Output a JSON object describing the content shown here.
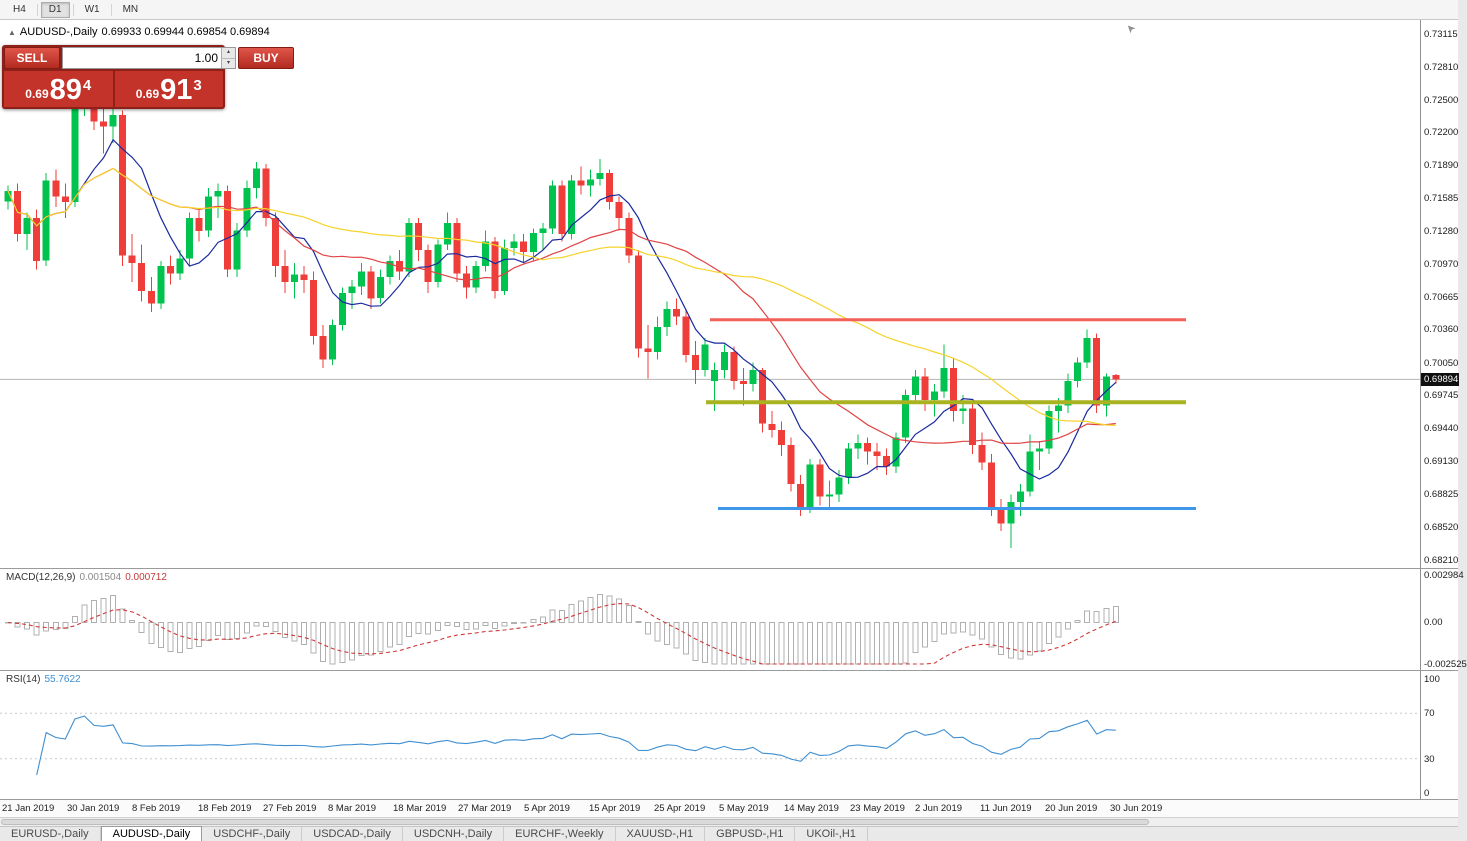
{
  "toolbar": {
    "timeframes": [
      {
        "label": "H4",
        "active": false
      },
      {
        "label": "D1",
        "active": true
      },
      {
        "label": "W1",
        "active": false
      },
      {
        "label": "MN",
        "active": false
      }
    ]
  },
  "icons": {
    "spinner_up": "▴",
    "spinner_down": "▾",
    "chart_marker": "▲",
    "cursor": "➤"
  },
  "chart": {
    "title": "AUDUSD-,Daily",
    "ohlc_text": "0.69933 0.69944 0.69854 0.69894"
  },
  "trade_panel": {
    "sell_label": "SELL",
    "buy_label": "BUY",
    "volume": "1.00",
    "bid": {
      "prefix": "0.69",
      "big": "89",
      "sup": "4"
    },
    "ask": {
      "prefix": "0.69",
      "big": "91",
      "sup": "3"
    }
  },
  "price_scale": {
    "labels": [
      "0.73115",
      "0.72810",
      "0.72500",
      "0.72200",
      "0.71890",
      "0.71585",
      "0.71280",
      "0.70970",
      "0.70665",
      "0.70360",
      "0.70050",
      "0.69745",
      "0.69440",
      "0.69130",
      "0.68825",
      "0.68520",
      "0.68210"
    ],
    "badge": "0.69894"
  },
  "macd_panel": {
    "label": "MACD(12,26,9)",
    "value_main": "0.001504",
    "value_signal": "0.000712",
    "scale_top": "0.002984",
    "scale_zero": "0.00",
    "scale_bottom": "-0.002525"
  },
  "rsi_panel": {
    "label": "RSI(14)",
    "value": "55.7622",
    "levels": [
      "100",
      "70",
      "30",
      "0"
    ]
  },
  "date_axis": [
    "21 Jan 2019",
    "30 Jan 2019",
    "8 Feb 2019",
    "18 Feb 2019",
    "27 Feb 2019",
    "8 Mar 2019",
    "18 Mar 2019",
    "27 Mar 2019",
    "5 Apr 2019",
    "15 Apr 2019",
    "25 Apr 2019",
    "5 May 2019",
    "14 May 2019",
    "23 May 2019",
    "2 Jun 2019",
    "11 Jun 2019",
    "20 Jun 2019",
    "30 Jun 2019"
  ],
  "tabs": [
    {
      "label": "EURUSD-,Daily",
      "active": false
    },
    {
      "label": "AUDUSD-,Daily",
      "active": true
    },
    {
      "label": "USDCHF-,Daily",
      "active": false
    },
    {
      "label": "USDCAD-,Daily",
      "active": false
    },
    {
      "label": "USDCNH-,Daily",
      "active": false
    },
    {
      "label": "EURCHF-,Weekly",
      "active": false
    },
    {
      "label": "XAUUSD-,H1",
      "active": false
    },
    {
      "label": "GBPUSD-,H1",
      "active": false
    },
    {
      "label": "UKOil-,H1",
      "active": false
    }
  ],
  "chart_data": {
    "type": "candlestick",
    "symbol": "AUDUSD",
    "timeframe": "Daily",
    "y_range": [
      0.68135,
      0.73245
    ],
    "bid": 0.69894,
    "colors": {
      "up": "#00c24e",
      "down": "#ef3e3a"
    },
    "overlays": [
      {
        "name": "ma-fast-blue-line",
        "period": 8,
        "color": "#1a2a9e"
      },
      {
        "name": "ma-mid-red-line",
        "period": 20,
        "color": "#e04343"
      },
      {
        "name": "ma-slow-yellow-line",
        "period": 45,
        "color": "#f6d32b"
      }
    ],
    "hlines": [
      {
        "name": "resistance-line",
        "price": 0.7045,
        "x1": 710,
        "x2": 1186,
        "color": "#f26058",
        "width": 3
      },
      {
        "name": "mid-support-line",
        "price": 0.6968,
        "x1": 706,
        "x2": 1186,
        "color": "#a9b21f",
        "width": 4
      },
      {
        "name": "support-line",
        "price": 0.6869,
        "x1": 718,
        "x2": 1196,
        "color": "#3e97e8",
        "width": 3
      }
    ],
    "macd": {
      "fast": 12,
      "slow": 26,
      "signal": 9,
      "scale_max": 0.0032,
      "scale_min": -0.0028
    },
    "rsi": {
      "period": 14,
      "levels": [
        70,
        30
      ]
    },
    "ohlc": [
      [
        0.7155,
        0.717,
        0.7148,
        0.7165
      ],
      [
        0.7165,
        0.7172,
        0.7118,
        0.7125
      ],
      [
        0.7125,
        0.7145,
        0.711,
        0.714
      ],
      [
        0.714,
        0.7148,
        0.7092,
        0.71
      ],
      [
        0.71,
        0.7182,
        0.7095,
        0.7175
      ],
      [
        0.7175,
        0.7185,
        0.715,
        0.716
      ],
      [
        0.716,
        0.7172,
        0.714,
        0.7155
      ],
      [
        0.7155,
        0.7255,
        0.715,
        0.725
      ],
      [
        0.725,
        0.7295,
        0.7235,
        0.7272
      ],
      [
        0.7272,
        0.729,
        0.7222,
        0.723
      ],
      [
        0.723,
        0.7248,
        0.72,
        0.7225
      ],
      [
        0.7225,
        0.7242,
        0.721,
        0.7236
      ],
      [
        0.7236,
        0.724,
        0.7095,
        0.7105
      ],
      [
        0.7105,
        0.7125,
        0.708,
        0.7098
      ],
      [
        0.7098,
        0.7115,
        0.7062,
        0.7072
      ],
      [
        0.7072,
        0.7085,
        0.7052,
        0.706
      ],
      [
        0.706,
        0.71,
        0.7055,
        0.7095
      ],
      [
        0.7095,
        0.7105,
        0.7078,
        0.7088
      ],
      [
        0.7088,
        0.711,
        0.7082,
        0.7102
      ],
      [
        0.7102,
        0.7145,
        0.7095,
        0.714
      ],
      [
        0.714,
        0.7148,
        0.7118,
        0.7128
      ],
      [
        0.7128,
        0.7168,
        0.7122,
        0.716
      ],
      [
        0.716,
        0.7172,
        0.714,
        0.7165
      ],
      [
        0.7165,
        0.717,
        0.7085,
        0.7092
      ],
      [
        0.7092,
        0.7135,
        0.7085,
        0.7128
      ],
      [
        0.7128,
        0.7175,
        0.7122,
        0.7168
      ],
      [
        0.7168,
        0.7192,
        0.7158,
        0.7186
      ],
      [
        0.7186,
        0.719,
        0.7132,
        0.714
      ],
      [
        0.714,
        0.7145,
        0.7085,
        0.7095
      ],
      [
        0.7095,
        0.711,
        0.707,
        0.708
      ],
      [
        0.708,
        0.7098,
        0.7065,
        0.7087
      ],
      [
        0.7087,
        0.7095,
        0.707,
        0.7082
      ],
      [
        0.7082,
        0.709,
        0.7022,
        0.703
      ],
      [
        0.703,
        0.704,
        0.7,
        0.7008
      ],
      [
        0.7008,
        0.7045,
        0.7003,
        0.704
      ],
      [
        0.704,
        0.7075,
        0.7035,
        0.707
      ],
      [
        0.707,
        0.7082,
        0.7055,
        0.7076
      ],
      [
        0.7076,
        0.7098,
        0.7068,
        0.709
      ],
      [
        0.709,
        0.7095,
        0.7055,
        0.7065
      ],
      [
        0.7065,
        0.7092,
        0.706,
        0.7085
      ],
      [
        0.7085,
        0.7105,
        0.7078,
        0.71
      ],
      [
        0.71,
        0.711,
        0.7082,
        0.709
      ],
      [
        0.709,
        0.714,
        0.7085,
        0.7135
      ],
      [
        0.7135,
        0.714,
        0.71,
        0.711
      ],
      [
        0.711,
        0.7115,
        0.707,
        0.708
      ],
      [
        0.708,
        0.712,
        0.7075,
        0.7115
      ],
      [
        0.7115,
        0.7145,
        0.711,
        0.7135
      ],
      [
        0.7135,
        0.714,
        0.708,
        0.7088
      ],
      [
        0.7088,
        0.7095,
        0.7065,
        0.7075
      ],
      [
        0.7075,
        0.71,
        0.707,
        0.7095
      ],
      [
        0.7095,
        0.7128,
        0.709,
        0.7118
      ],
      [
        0.7118,
        0.7122,
        0.7065,
        0.7072
      ],
      [
        0.7072,
        0.712,
        0.7068,
        0.7112
      ],
      [
        0.7112,
        0.7125,
        0.7105,
        0.7118
      ],
      [
        0.7118,
        0.7125,
        0.7098,
        0.7108
      ],
      [
        0.7108,
        0.713,
        0.71,
        0.7126
      ],
      [
        0.7126,
        0.7135,
        0.711,
        0.713
      ],
      [
        0.713,
        0.7175,
        0.7125,
        0.717
      ],
      [
        0.717,
        0.7175,
        0.7118,
        0.7125
      ],
      [
        0.7125,
        0.718,
        0.712,
        0.7175
      ],
      [
        0.7175,
        0.7188,
        0.7162,
        0.717
      ],
      [
        0.717,
        0.7185,
        0.716,
        0.7176
      ],
      [
        0.7176,
        0.7195,
        0.717,
        0.7182
      ],
      [
        0.7182,
        0.7185,
        0.7148,
        0.7155
      ],
      [
        0.7155,
        0.716,
        0.7128,
        0.714
      ],
      [
        0.714,
        0.7145,
        0.7098,
        0.7105
      ],
      [
        0.7105,
        0.711,
        0.701,
        0.7018
      ],
      [
        0.7018,
        0.704,
        0.699,
        0.7015
      ],
      [
        0.7015,
        0.7048,
        0.7008,
        0.7038
      ],
      [
        0.7038,
        0.7062,
        0.703,
        0.7055
      ],
      [
        0.7055,
        0.7065,
        0.704,
        0.7048
      ],
      [
        0.7048,
        0.7055,
        0.7005,
        0.7012
      ],
      [
        0.7012,
        0.7025,
        0.6985,
        0.6998
      ],
      [
        0.6998,
        0.7028,
        0.6992,
        0.7022
      ],
      [
        0.6988,
        0.7005,
        0.696,
        0.6998
      ],
      [
        0.6998,
        0.7022,
        0.699,
        0.7015
      ],
      [
        0.7015,
        0.702,
        0.698,
        0.6988
      ],
      [
        0.6988,
        0.7,
        0.6965,
        0.6985
      ],
      [
        0.6985,
        0.7005,
        0.6978,
        0.6998
      ],
      [
        0.6998,
        0.7,
        0.694,
        0.6948
      ],
      [
        0.6948,
        0.696,
        0.6935,
        0.6942
      ],
      [
        0.6942,
        0.695,
        0.6918,
        0.6928
      ],
      [
        0.6928,
        0.6935,
        0.6885,
        0.6892
      ],
      [
        0.6892,
        0.69,
        0.6862,
        0.6868
      ],
      [
        0.6868,
        0.6915,
        0.6865,
        0.691
      ],
      [
        0.691,
        0.6915,
        0.6872,
        0.688
      ],
      [
        0.688,
        0.6895,
        0.687,
        0.6882
      ],
      [
        0.6882,
        0.6905,
        0.6875,
        0.6898
      ],
      [
        0.6898,
        0.693,
        0.6892,
        0.6925
      ],
      [
        0.6925,
        0.6938,
        0.6915,
        0.693
      ],
      [
        0.693,
        0.6935,
        0.691,
        0.6922
      ],
      [
        0.6922,
        0.693,
        0.6905,
        0.6918
      ],
      [
        0.6918,
        0.6925,
        0.69,
        0.6908
      ],
      [
        0.6908,
        0.694,
        0.6902,
        0.6935
      ],
      [
        0.6935,
        0.698,
        0.693,
        0.6975
      ],
      [
        0.6975,
        0.6998,
        0.6968,
        0.6992
      ],
      [
        0.6992,
        0.7,
        0.696,
        0.697
      ],
      [
        0.697,
        0.6985,
        0.6955,
        0.6978
      ],
      [
        0.6978,
        0.7022,
        0.6972,
        0.7
      ],
      [
        0.7,
        0.701,
        0.695,
        0.696
      ],
      [
        0.696,
        0.6975,
        0.6948,
        0.6962
      ],
      [
        0.6962,
        0.6968,
        0.692,
        0.6928
      ],
      [
        0.6928,
        0.694,
        0.6905,
        0.6912
      ],
      [
        0.6912,
        0.692,
        0.6862,
        0.687
      ],
      [
        0.687,
        0.6878,
        0.6848,
        0.6855
      ],
      [
        0.6855,
        0.6882,
        0.6832,
        0.6875
      ],
      [
        0.6875,
        0.6892,
        0.6862,
        0.6885
      ],
      [
        0.6885,
        0.6938,
        0.688,
        0.6922
      ],
      [
        0.6922,
        0.6932,
        0.6905,
        0.6925
      ],
      [
        0.6925,
        0.6965,
        0.692,
        0.696
      ],
      [
        0.696,
        0.6972,
        0.694,
        0.6965
      ],
      [
        0.6965,
        0.6995,
        0.6958,
        0.6988
      ],
      [
        0.6988,
        0.701,
        0.6982,
        0.7005
      ],
      [
        0.7005,
        0.7036,
        0.7,
        0.7028
      ],
      [
        0.7028,
        0.7032,
        0.6958,
        0.6965
      ],
      [
        0.6965,
        0.6995,
        0.6955,
        0.6992
      ],
      [
        0.69933,
        0.69944,
        0.69854,
        0.69894
      ]
    ]
  }
}
